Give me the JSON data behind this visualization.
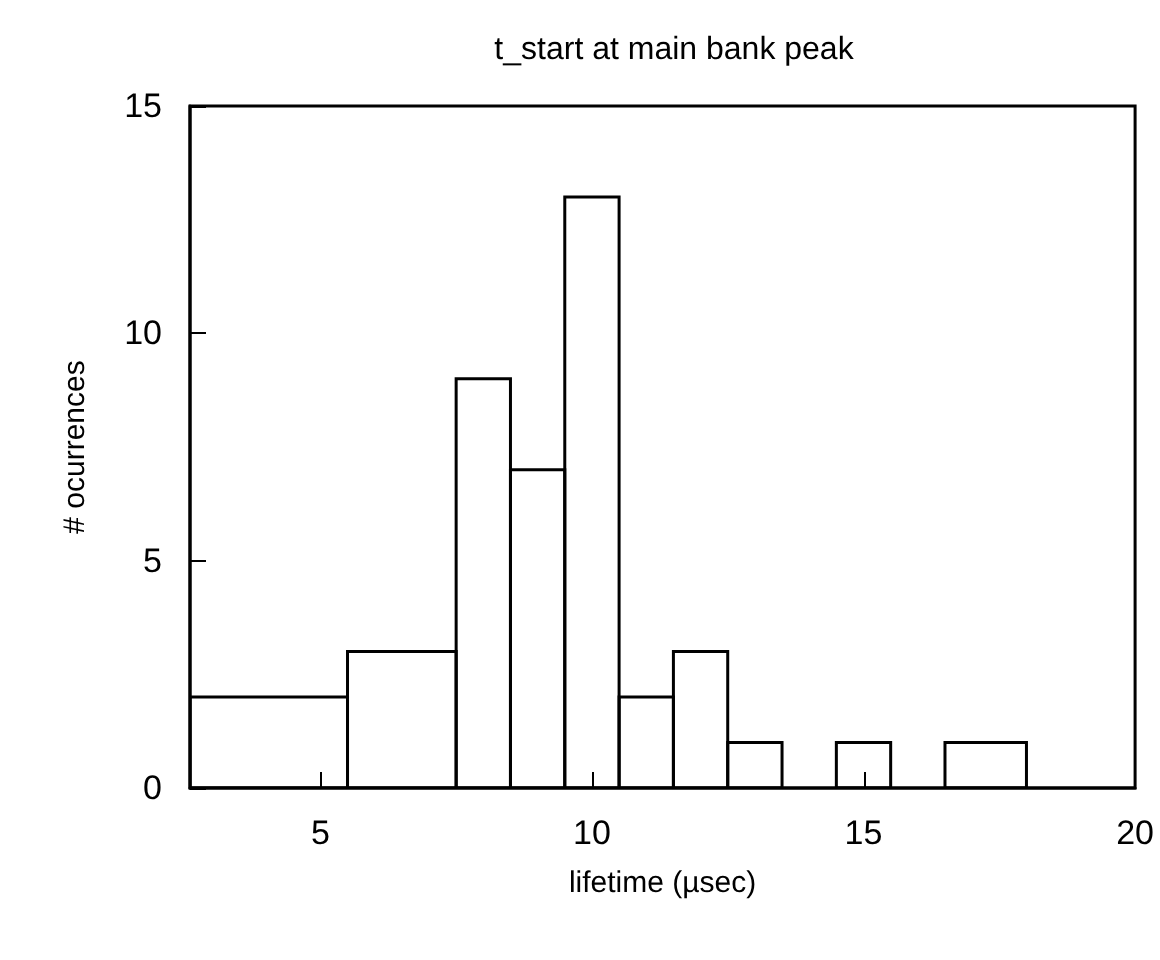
{
  "chart_data": {
    "type": "histogram",
    "title": "t_start at main bank peak",
    "xlabel": "lifetime (µsec)",
    "ylabel": "# ocurrences",
    "bins": [
      2.6,
      5.5,
      7.5,
      8.5,
      9.5,
      10.5,
      11.5,
      12.5,
      13.5,
      14.5,
      15.5,
      16.5,
      18
    ],
    "values": [
      2,
      3,
      9,
      7,
      13,
      2,
      3,
      1,
      0,
      1,
      0,
      1
    ],
    "color": "#000000",
    "xlim": [
      2.6,
      20
    ],
    "xticks": [
      5,
      10,
      15,
      20
    ],
    "ylim": [
      0,
      15
    ],
    "yticks": [
      0,
      5,
      10,
      15
    ]
  }
}
